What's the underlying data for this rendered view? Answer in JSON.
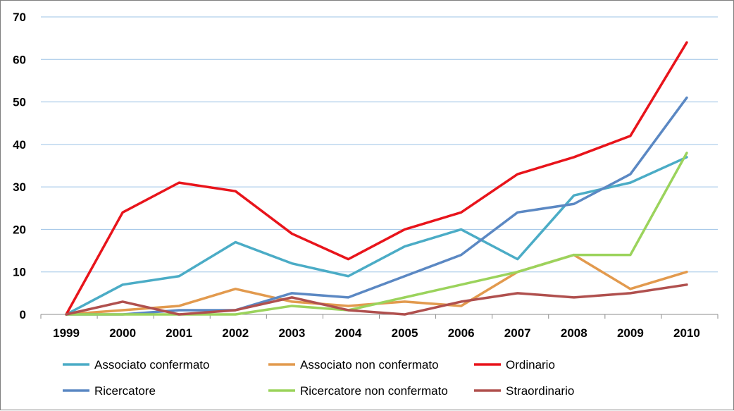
{
  "chart_data": {
    "type": "line",
    "title": "",
    "xlabel": "",
    "ylabel": "",
    "categories": [
      "1999",
      "2000",
      "2001",
      "2002",
      "2003",
      "2004",
      "2005",
      "2006",
      "2007",
      "2008",
      "2009",
      "2010"
    ],
    "ylim": [
      0,
      70
    ],
    "yticks": [
      "0",
      "10",
      "20",
      "30",
      "40",
      "50",
      "60",
      "70"
    ],
    "grid": true,
    "legend_position": "bottom",
    "series": [
      {
        "name": "Associato confermato",
        "color": "#4bacc6",
        "values": [
          0,
          7,
          9,
          17,
          12,
          9,
          16,
          20,
          13,
          28,
          31,
          37
        ]
      },
      {
        "name": "Associato non confermato",
        "color": "#e29a4e",
        "values": [
          0,
          1,
          2,
          6,
          3,
          2,
          3,
          2,
          10,
          14,
          6,
          10
        ]
      },
      {
        "name": "Ordinario",
        "color": "#e8141b",
        "values": [
          0,
          24,
          31,
          29,
          19,
          13,
          20,
          24,
          33,
          37,
          42,
          64
        ]
      },
      {
        "name": "Ricercatore",
        "color": "#5b88c3",
        "values": [
          0,
          0,
          1,
          1,
          5,
          4,
          9,
          14,
          24,
          26,
          33,
          51
        ]
      },
      {
        "name": "Ricercatore non confermato",
        "color": "#9bd35c",
        "values": [
          0,
          0,
          0,
          0,
          2,
          1,
          4,
          7,
          10,
          14,
          14,
          38
        ]
      },
      {
        "name": "Straordinario",
        "color": "#b0504e",
        "values": [
          0,
          3,
          0,
          1,
          4,
          1,
          0,
          3,
          5,
          4,
          5,
          7
        ]
      }
    ]
  }
}
